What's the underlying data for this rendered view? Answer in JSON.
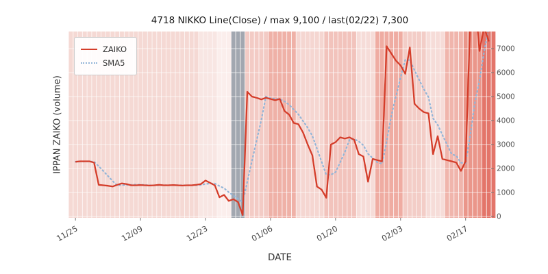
{
  "chart": {
    "title": "4718 NIKKO Line(Close) / max 9,100 / last(02/22) 7,300",
    "xlabel": "DATE",
    "ylabel": "IPPAN ZAIKO (volume)"
  },
  "legend": {
    "items": [
      {
        "label": "ZAIKO",
        "style": "solid-red-line"
      },
      {
        "label": "SMA5",
        "style": "dotted-blue-line"
      }
    ]
  },
  "chart_data": {
    "type": "line",
    "title": "4718 NIKKO Line(Close) / max 9,100 / last(02/22) 7,300",
    "xlabel": "DATE",
    "ylabel": "IPPAN ZAIKO (volume)",
    "max_value": 9100,
    "last_value": 7300,
    "last_date": "02/22",
    "x_start_date": "11/25",
    "x_end_date": "02/22",
    "x_is_daily_index": true,
    "x_ticks": [
      {
        "day": 0,
        "label": "11/25"
      },
      {
        "day": 14,
        "label": "12/09"
      },
      {
        "day": 28,
        "label": "12/23"
      },
      {
        "day": 42,
        "label": "01/06"
      },
      {
        "day": 56,
        "label": "01/20"
      },
      {
        "day": 70,
        "label": "02/03"
      },
      {
        "day": 84,
        "label": "02/17"
      }
    ],
    "y_ticks": [
      0,
      1000,
      2000,
      3000,
      4000,
      5000,
      6000,
      7000
    ],
    "ylim": [
      -60,
      7714
    ],
    "legend_position": "upper-left",
    "grid": "white-on-shaded-bands",
    "series": [
      {
        "name": "ZAIKO",
        "color": "#d43d2a",
        "style": "solid",
        "values": [
          2280,
          2300,
          2300,
          2300,
          2250,
          1320,
          1300,
          1280,
          1250,
          1320,
          1380,
          1350,
          1300,
          1300,
          1310,
          1300,
          1290,
          1300,
          1320,
          1300,
          1300,
          1310,
          1300,
          1290,
          1300,
          1300,
          1320,
          1350,
          1500,
          1400,
          1300,
          800,
          900,
          650,
          720,
          600,
          60,
          5200,
          5000,
          4950,
          4880,
          4950,
          4900,
          4850,
          4900,
          4400,
          4250,
          3900,
          3850,
          3500,
          3000,
          2550,
          1250,
          1120,
          780,
          3000,
          3100,
          3300,
          3250,
          3300,
          3200,
          2600,
          2500,
          1450,
          2400,
          2350,
          2300,
          7100,
          6800,
          6500,
          6300,
          5950,
          7050,
          4700,
          4500,
          4350,
          4300,
          2600,
          3350,
          2400,
          2350,
          2300,
          2250,
          1900,
          2300,
          8200,
          9100,
          6900,
          7900,
          7300
        ]
      },
      {
        "name": "SMA5",
        "color": "#92b5d8",
        "style": "dotted",
        "derived": "5-day simple moving average of ZAIKO"
      }
    ],
    "background_bands": [
      {
        "from": -2,
        "to": 26,
        "color": "#f5d9d4"
      },
      {
        "from": 27,
        "to": 30,
        "color": "#f8e6e3"
      },
      {
        "from": 31,
        "to": 33,
        "color": "#fbeeec"
      },
      {
        "from": 34,
        "to": 36,
        "color": "#a2a7b0"
      },
      {
        "from": 37,
        "to": 41,
        "color": "#f3cbc5"
      },
      {
        "from": 42,
        "to": 47,
        "color": "#efb1a7"
      },
      {
        "from": 48,
        "to": 53,
        "color": "#f5d6d1"
      },
      {
        "from": 54,
        "to": 60,
        "color": "#f2c3bc"
      },
      {
        "from": 61,
        "to": 64,
        "color": "#f6dcd8"
      },
      {
        "from": 65,
        "to": 70,
        "color": "#efaca2"
      },
      {
        "from": 71,
        "to": 75,
        "color": "#f3cdc7"
      },
      {
        "from": 76,
        "to": 79,
        "color": "#f6dcd8"
      },
      {
        "from": 80,
        "to": 83,
        "color": "#f0b5ac"
      },
      {
        "from": 84,
        "to": 87,
        "color": "#ea968a"
      },
      {
        "from": 88,
        "to": 90,
        "color": "#e3756a"
      }
    ],
    "colors": {
      "zaiko_line": "#d43d2a",
      "sma5_line": "#92b5d8",
      "holiday_band": "#a2a7b0",
      "tick_text": "#555555",
      "grid_line": "#ffffff"
    }
  }
}
